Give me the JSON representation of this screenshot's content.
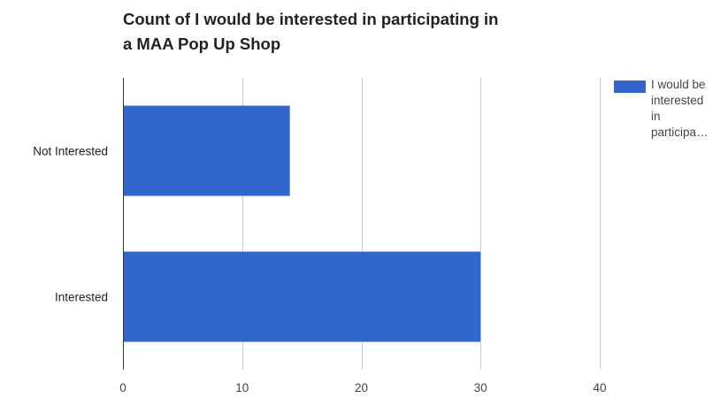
{
  "chart_data": {
    "type": "bar",
    "orientation": "horizontal",
    "title_lines": [
      "Count of I would be interested in participating in",
      "a MAA Pop Up Shop"
    ],
    "categories": [
      "Not Interested",
      "Interested"
    ],
    "series": [
      {
        "name": "I would be interested in participa…",
        "legend_lines": [
          "I would be",
          "interested",
          "in",
          "participa…"
        ],
        "values": [
          14,
          30
        ],
        "color": "#3366cc"
      }
    ],
    "xlabel": "",
    "ylabel": "",
    "xlim": [
      0,
      40
    ],
    "xticks": [
      "0",
      "10",
      "20",
      "30",
      "40"
    ],
    "grid": true,
    "legend_position": "right"
  }
}
